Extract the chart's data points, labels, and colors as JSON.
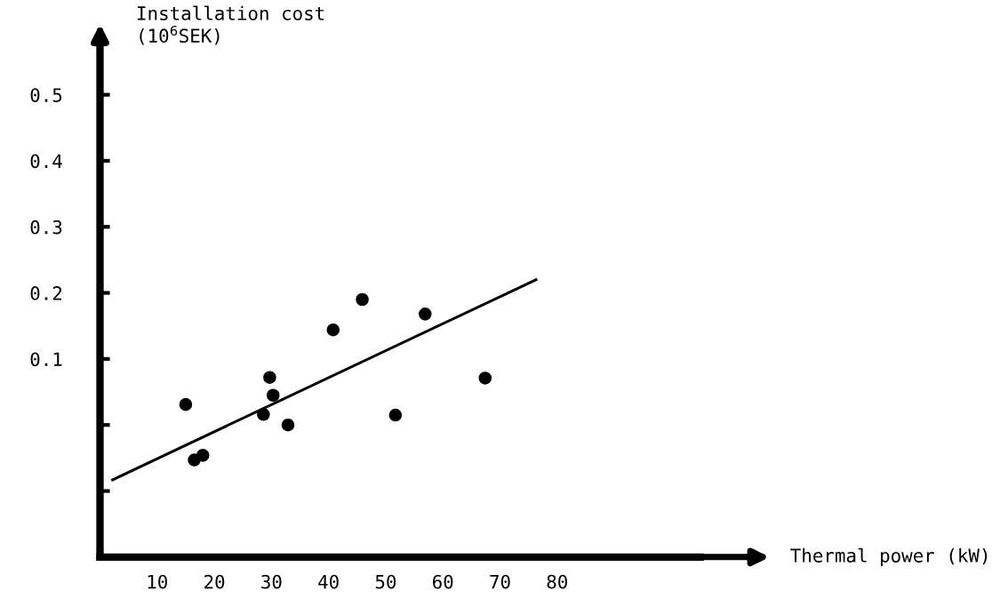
{
  "chart_data": {
    "type": "scatter",
    "xlabel": "Thermal power (kW)",
    "ylabel": "Installation cost\n(10$^{6}$SEK)",
    "xlim": [
      0,
      105
    ],
    "xticks": [
      10,
      20,
      30,
      40,
      50,
      60,
      70,
      80
    ],
    "ylim": [
      -0.2,
      0.58
    ],
    "yticks": [
      {
        "value": -0.1,
        "label": null
      },
      {
        "value": 0.0,
        "label": null
      },
      0.1,
      0.2,
      0.3,
      0.4,
      0.5
    ],
    "grid": false,
    "marker": "circle",
    "series": [
      {
        "color": "#000000",
        "x": [
          15.0,
          16.5,
          18.0,
          28.6,
          29.7,
          30.3,
          32.9,
          40.8,
          45.9,
          51.7,
          56.9,
          67.4
        ],
        "values": [
          0.031,
          -0.053,
          -0.046,
          0.016,
          0.072,
          0.045,
          0.0,
          0.144,
          0.19,
          0.015,
          0.168,
          0.071
        ]
      },
      {
        "type": "line",
        "marker": "none",
        "color": "#000000",
        "x": [
          2.2,
          76.3
        ],
        "values": [
          -0.083,
          0.22
        ]
      }
    ]
  }
}
